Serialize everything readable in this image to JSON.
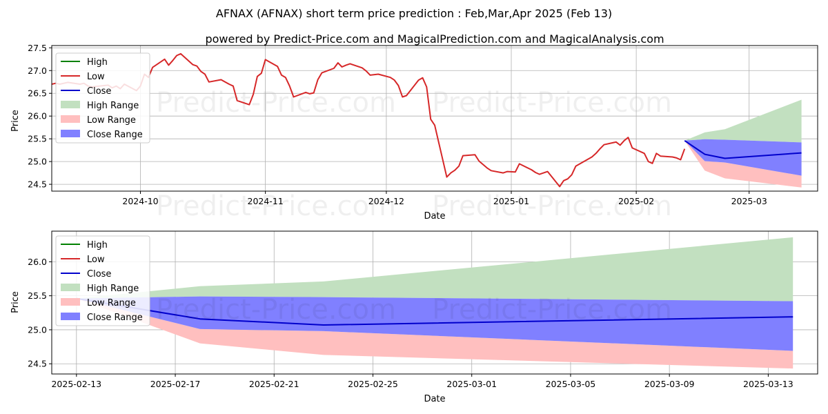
{
  "title": "AFNAX (AFNAX) short term price prediction : Feb,Mar,Apr 2025 (Feb 13)",
  "subtitle": "powered by Predict-Price.com and MagicalPrediction.com and MagicalAnalysis.com",
  "watermark": "Predict-Price.com",
  "colors": {
    "high": "#008000",
    "low": "#d62728",
    "close": "#0000cc",
    "high_range": "#c2e0c0",
    "low_range": "#ffbfbf",
    "close_range": "#8080ff",
    "grid": "#b0b0b0"
  },
  "legend": {
    "high": "High",
    "low": "Low",
    "close": "Close",
    "high_range": "High Range",
    "low_range": "Low Range",
    "close_range": "Close Range"
  },
  "chart_data": [
    {
      "type": "line",
      "xlabel": "Date",
      "ylabel": "Price",
      "ylim": [
        24.35,
        27.55
      ],
      "xlim": [
        "2024-09-09",
        "2025-03-18"
      ],
      "y_ticks": [
        "24.5",
        "25.0",
        "25.5",
        "26.0",
        "26.5",
        "27.0",
        "27.5"
      ],
      "x_ticks": [
        "2024-10",
        "2024-11",
        "2024-12",
        "2025-01",
        "2025-02",
        "2025-03"
      ],
      "grid": true,
      "legend_position": "top-left",
      "price_series": {
        "name": "Low",
        "x": [
          "2024-09-09",
          "2024-09-10",
          "2024-09-11",
          "2024-09-12",
          "2024-09-13",
          "2024-09-16",
          "2024-09-17",
          "2024-09-18",
          "2024-09-19",
          "2024-09-20",
          "2024-09-23",
          "2024-09-24",
          "2024-09-25",
          "2024-09-26",
          "2024-09-27",
          "2024-09-30",
          "2024-10-01",
          "2024-10-02",
          "2024-10-03",
          "2024-10-04",
          "2024-10-07",
          "2024-10-08",
          "2024-10-09",
          "2024-10-10",
          "2024-10-11",
          "2024-10-14",
          "2024-10-15",
          "2024-10-16",
          "2024-10-17",
          "2024-10-18",
          "2024-10-21",
          "2024-10-22",
          "2024-10-23",
          "2024-10-24",
          "2024-10-25",
          "2024-10-28",
          "2024-10-29",
          "2024-10-30",
          "2024-10-31",
          "2024-11-01",
          "2024-11-04",
          "2024-11-05",
          "2024-11-06",
          "2024-11-07",
          "2024-11-08",
          "2024-11-11",
          "2024-11-12",
          "2024-11-13",
          "2024-11-14",
          "2024-11-15",
          "2024-11-18",
          "2024-11-19",
          "2024-11-20",
          "2024-11-21",
          "2024-11-22",
          "2024-11-25",
          "2024-11-26",
          "2024-11-27",
          "2024-11-29",
          "2024-12-02",
          "2024-12-03",
          "2024-12-04",
          "2024-12-05",
          "2024-12-06",
          "2024-12-09",
          "2024-12-10",
          "2024-12-11",
          "2024-12-12",
          "2024-12-13",
          "2024-12-16",
          "2024-12-17",
          "2024-12-18",
          "2024-12-19",
          "2024-12-20",
          "2024-12-23",
          "2024-12-24",
          "2024-12-26",
          "2024-12-27",
          "2024-12-30",
          "2024-12-31",
          "2025-01-02",
          "2025-01-03",
          "2025-01-06",
          "2025-01-07",
          "2025-01-08",
          "2025-01-10",
          "2025-01-13",
          "2025-01-14",
          "2025-01-15",
          "2025-01-16",
          "2025-01-17",
          "2025-01-21",
          "2025-01-22",
          "2025-01-23",
          "2025-01-24",
          "2025-01-27",
          "2025-01-28",
          "2025-01-29",
          "2025-01-30",
          "2025-01-31",
          "2025-02-03",
          "2025-02-04",
          "2025-02-05",
          "2025-02-06",
          "2025-02-07",
          "2025-02-10",
          "2025-02-11",
          "2025-02-12",
          "2025-02-13"
        ],
        "y": [
          26.7,
          26.72,
          26.7,
          26.72,
          26.74,
          26.7,
          26.72,
          26.66,
          26.64,
          26.65,
          26.68,
          26.62,
          26.66,
          26.6,
          26.7,
          26.56,
          26.66,
          26.92,
          26.85,
          27.07,
          27.25,
          27.12,
          27.22,
          27.33,
          27.37,
          27.13,
          27.1,
          26.98,
          26.92,
          26.75,
          26.8,
          26.75,
          26.7,
          26.66,
          26.34,
          26.25,
          26.48,
          26.87,
          26.94,
          27.24,
          27.09,
          26.9,
          26.85,
          26.66,
          26.42,
          26.52,
          26.49,
          26.51,
          26.8,
          26.95,
          27.05,
          27.17,
          27.08,
          27.12,
          27.15,
          27.06,
          26.99,
          26.9,
          26.92,
          26.85,
          26.79,
          26.67,
          26.42,
          26.45,
          26.79,
          26.84,
          26.64,
          25.93,
          25.8,
          24.66,
          24.75,
          24.81,
          24.9,
          25.13,
          25.15,
          25.01,
          24.86,
          24.8,
          24.75,
          24.78,
          24.77,
          24.95,
          24.82,
          24.76,
          24.72,
          24.78,
          24.45,
          24.58,
          24.62,
          24.71,
          24.9,
          25.1,
          25.18,
          25.28,
          25.37,
          25.43,
          25.36,
          25.46,
          25.53,
          25.3,
          25.18,
          25.0,
          24.96,
          25.18,
          25.12,
          25.1,
          25.08,
          25.04,
          25.28
        ]
      },
      "forecast": {
        "x": [
          "2025-02-13",
          "2025-02-18",
          "2025-02-23",
          "2025-03-14"
        ],
        "close": [
          25.46,
          25.16,
          25.07,
          25.19
        ],
        "high_range_upper": [
          25.46,
          25.64,
          25.71,
          26.36
        ],
        "close_range_upper": [
          25.46,
          25.49,
          25.48,
          25.42
        ],
        "close_range_lower": [
          25.46,
          25.01,
          24.98,
          24.69
        ],
        "low_range_lower": [
          25.46,
          24.8,
          24.63,
          24.43
        ]
      }
    },
    {
      "type": "line",
      "xlabel": "Date",
      "ylabel": "Price",
      "ylim": [
        24.35,
        26.45
      ],
      "xlim": [
        "2025-02-12",
        "2025-03-15"
      ],
      "y_ticks": [
        "24.5",
        "25.0",
        "25.5",
        "26.0"
      ],
      "x_ticks": [
        "2025-02-13",
        "2025-02-17",
        "2025-02-21",
        "2025-02-25",
        "2025-03-01",
        "2025-03-05",
        "2025-03-09",
        "2025-03-13"
      ],
      "grid": true,
      "legend_position": "top-left",
      "forecast": {
        "x": [
          "2025-02-13",
          "2025-02-18",
          "2025-02-23",
          "2025-03-14"
        ],
        "close": [
          25.46,
          25.16,
          25.07,
          25.19
        ],
        "high_range_upper": [
          25.46,
          25.64,
          25.71,
          26.36
        ],
        "close_range_upper": [
          25.46,
          25.49,
          25.48,
          25.42
        ],
        "close_range_lower": [
          25.46,
          25.01,
          24.98,
          24.69
        ],
        "low_range_lower": [
          25.46,
          24.8,
          24.63,
          24.43
        ]
      }
    }
  ]
}
